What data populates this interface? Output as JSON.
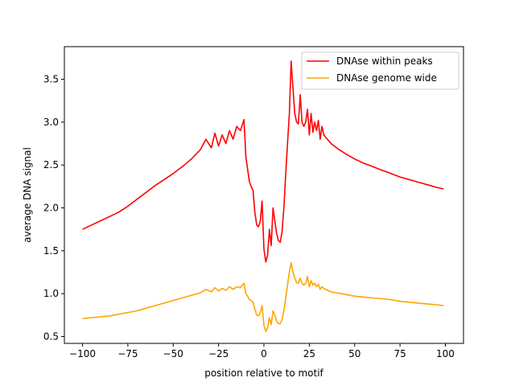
{
  "chart_data": {
    "type": "line",
    "title": "",
    "xlabel": "position relative to motif",
    "ylabel": "average DNA signal",
    "xlim": [
      -110,
      110
    ],
    "ylim": [
      0.42,
      3.88
    ],
    "xticks": [
      -100,
      -75,
      -50,
      -25,
      0,
      25,
      50,
      75,
      100
    ],
    "xtick_labels": [
      "−100",
      "−75",
      "−50",
      "−25",
      "0",
      "25",
      "50",
      "75",
      "100"
    ],
    "yticks": [
      0.5,
      1.0,
      1.5,
      2.0,
      2.5,
      3.0,
      3.5
    ],
    "ytick_labels": [
      "0.5",
      "1.0",
      "1.5",
      "2.0",
      "2.5",
      "3.0",
      "3.5"
    ],
    "grid": false,
    "legend_position": "top-right",
    "x": [
      -100,
      -95,
      -90,
      -85,
      -80,
      -75,
      -70,
      -65,
      -60,
      -55,
      -50,
      -45,
      -40,
      -35,
      -32,
      -29,
      -27,
      -25,
      -23,
      -21,
      -19,
      -17,
      -15,
      -13,
      -11,
      -10,
      -9,
      -8,
      -7,
      -6,
      -5,
      -4,
      -3,
      -2,
      -1,
      0,
      1,
      2,
      3,
      4,
      5,
      6,
      7,
      8,
      9,
      10,
      11,
      12,
      13,
      14,
      15,
      16,
      17,
      18,
      19,
      20,
      21,
      22,
      23,
      24,
      25,
      26,
      27,
      28,
      29,
      30,
      31,
      32,
      33,
      35,
      37,
      40,
      45,
      50,
      55,
      60,
      65,
      70,
      75,
      80,
      85,
      90,
      95,
      99
    ],
    "series": [
      {
        "name": "DNAse within peaks",
        "color": "#ff0000",
        "values": [
          1.75,
          1.8,
          1.85,
          1.9,
          1.95,
          2.02,
          2.1,
          2.18,
          2.26,
          2.33,
          2.4,
          2.48,
          2.57,
          2.68,
          2.8,
          2.7,
          2.87,
          2.72,
          2.85,
          2.75,
          2.9,
          2.8,
          2.95,
          2.9,
          3.03,
          2.6,
          2.45,
          2.3,
          2.25,
          2.2,
          1.95,
          1.8,
          1.78,
          1.85,
          2.08,
          1.52,
          1.37,
          1.45,
          1.75,
          1.56,
          2.0,
          1.85,
          1.7,
          1.62,
          1.6,
          1.72,
          2.0,
          2.4,
          2.75,
          3.1,
          3.71,
          3.4,
          3.1,
          3.0,
          2.98,
          3.32,
          3.0,
          2.95,
          3.0,
          3.15,
          2.85,
          3.1,
          2.88,
          3.0,
          2.9,
          3.02,
          2.8,
          2.95,
          2.85,
          2.8,
          2.75,
          2.7,
          2.63,
          2.57,
          2.52,
          2.48,
          2.44,
          2.4,
          2.36,
          2.33,
          2.3,
          2.27,
          2.24,
          2.22
        ]
      },
      {
        "name": "DNAse genome wide",
        "color": "#ffa500",
        "values": [
          0.71,
          0.72,
          0.73,
          0.74,
          0.76,
          0.78,
          0.8,
          0.83,
          0.86,
          0.89,
          0.92,
          0.95,
          0.98,
          1.01,
          1.05,
          1.02,
          1.07,
          1.03,
          1.06,
          1.04,
          1.08,
          1.05,
          1.08,
          1.07,
          1.12,
          1.0,
          0.97,
          0.93,
          0.92,
          0.9,
          0.82,
          0.75,
          0.74,
          0.78,
          0.86,
          0.63,
          0.56,
          0.6,
          0.72,
          0.64,
          0.8,
          0.75,
          0.68,
          0.65,
          0.65,
          0.7,
          0.8,
          0.95,
          1.1,
          1.25,
          1.36,
          1.25,
          1.18,
          1.13,
          1.12,
          1.18,
          1.12,
          1.1,
          1.12,
          1.2,
          1.08,
          1.15,
          1.1,
          1.12,
          1.08,
          1.11,
          1.05,
          1.08,
          1.06,
          1.04,
          1.02,
          1.01,
          0.99,
          0.97,
          0.96,
          0.95,
          0.94,
          0.93,
          0.91,
          0.9,
          0.89,
          0.88,
          0.87,
          0.86
        ]
      }
    ]
  }
}
